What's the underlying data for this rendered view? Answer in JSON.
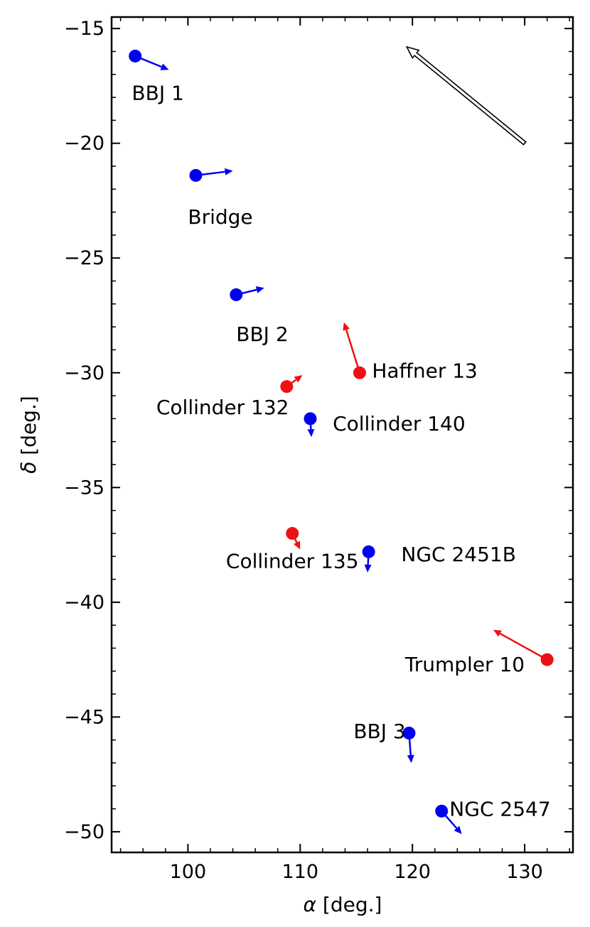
{
  "chart_data": {
    "type": "scatter",
    "title": "",
    "xlabel_symbol": "α",
    "xlabel_rest": " [deg.]",
    "ylabel_symbol": "δ",
    "ylabel_rest": " [deg.]",
    "xlim": [
      93.2,
      134.3
    ],
    "ylim": [
      -50.9,
      -14.5
    ],
    "xticks": [
      100,
      110,
      120,
      130
    ],
    "yticks": [
      -15,
      -20,
      -25,
      -30,
      -35,
      -40,
      -45,
      -50
    ],
    "xtick_labels": [
      "100",
      "110",
      "120",
      "130"
    ],
    "ytick_labels": [
      "−15",
      "−20",
      "−25",
      "−30",
      "−35",
      "−40",
      "−45",
      "−50"
    ],
    "grid": false,
    "colors": {
      "blue": "#0000ee",
      "red": "#ee1111",
      "ref": "#000000"
    },
    "points": [
      {
        "label": "BBJ 1",
        "ra": 95.3,
        "dec": -16.2,
        "vx": 3.0,
        "vy": -0.6,
        "color": "blue",
        "lx": 95.0,
        "ly": -17.8,
        "anchor": "start"
      },
      {
        "label": "Bridge",
        "ra": 100.7,
        "dec": -21.4,
        "vx": 3.3,
        "vy": 0.2,
        "color": "blue",
        "lx": 100.0,
        "ly": -23.2,
        "anchor": "start"
      },
      {
        "label": "BBJ 2",
        "ra": 104.3,
        "dec": -26.6,
        "vx": 2.5,
        "vy": 0.3,
        "color": "blue",
        "lx": 104.3,
        "ly": -28.3,
        "anchor": "start"
      },
      {
        "label": "Haffner 13",
        "ra": 115.3,
        "dec": -30.0,
        "vx": -1.4,
        "vy": 2.2,
        "color": "red",
        "lx": 116.4,
        "ly": -29.9,
        "anchor": "start"
      },
      {
        "label": "Collinder 132",
        "ra": 108.8,
        "dec": -30.6,
        "vx": 1.4,
        "vy": 0.5,
        "color": "red",
        "lx": 109.0,
        "ly": -31.5,
        "anchor": "end"
      },
      {
        "label": "Collinder 140",
        "ra": 110.9,
        "dec": -32.0,
        "vx": 0.1,
        "vy": -0.8,
        "color": "blue",
        "lx": 112.9,
        "ly": -32.2,
        "anchor": "start"
      },
      {
        "label": "Collinder 135",
        "ra": 109.3,
        "dec": -37.0,
        "vx": 0.7,
        "vy": -0.7,
        "color": "red",
        "lx": 109.3,
        "ly": -38.2,
        "anchor": "middle"
      },
      {
        "label": "NGC 2451B",
        "ra": 116.1,
        "dec": -37.8,
        "vx": -0.1,
        "vy": -0.9,
        "color": "blue",
        "lx": 119.0,
        "ly": -37.9,
        "anchor": "start"
      },
      {
        "label": "Trumpler 10",
        "ra": 132.0,
        "dec": -42.5,
        "vx": -4.8,
        "vy": 1.3,
        "color": "red",
        "lx": 130.0,
        "ly": -42.7,
        "anchor": "end"
      },
      {
        "label": "BBJ 3",
        "ra": 119.7,
        "dec": -45.7,
        "vx": 0.2,
        "vy": -1.3,
        "color": "blue",
        "lx": 119.4,
        "ly": -45.6,
        "anchor": "end"
      },
      {
        "label": "NGC 2547",
        "ra": 122.6,
        "dec": -49.1,
        "vx": 1.8,
        "vy": -1.0,
        "color": "blue",
        "lx": 123.3,
        "ly": -49.0,
        "anchor": "start"
      }
    ],
    "reference_arrow": {
      "ra": 130.0,
      "dec": -20.0,
      "vx": -10.5,
      "vy": 4.2
    }
  }
}
